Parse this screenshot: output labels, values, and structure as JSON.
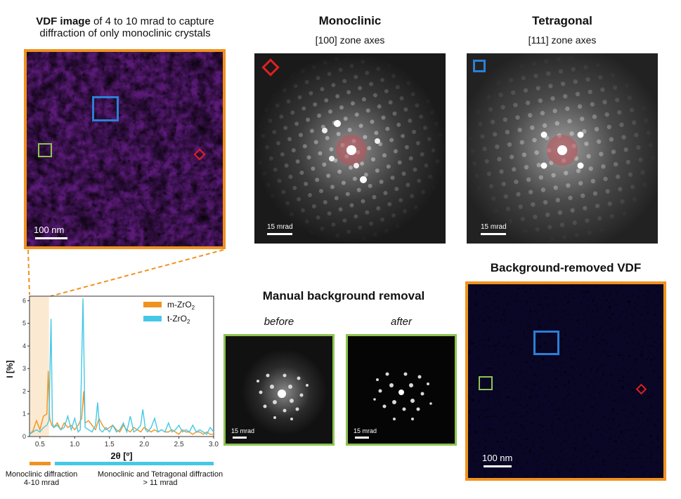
{
  "vdf": {
    "title_bold": "VDF image",
    "title_rest": " of 4 to 10 mrad to capture",
    "title_line2": "diffraction of only monoclinic crystals",
    "scale_label": "100 nm"
  },
  "monoclinic": {
    "title": "Monoclinic",
    "zone": "[100] zone axes",
    "scale_label": "15 mrad"
  },
  "tetragonal": {
    "title": "Tetragonal",
    "zone": "[111] zone axes",
    "scale_label": "15 mrad"
  },
  "manual": {
    "title": "Manual background removal",
    "before_label": "before",
    "after_label": "after",
    "before_scale": "15 mrad",
    "after_scale": "15 mrad"
  },
  "bg_removed": {
    "title": "Background-removed VDF",
    "scale_label": "100 nm"
  },
  "bottom_labels": {
    "left_line1": "Monoclinic diffraction",
    "left_line2": "4-10 mrad",
    "right_line1": "Monoclinic and Tetragonal diffraction",
    "right_line2": "> 11 mrad"
  },
  "colors": {
    "orange": "#f0921e",
    "cyan": "#45c8e6",
    "green": "#8dc451",
    "blue": "#2b7fd6",
    "red": "#e02020"
  },
  "chart_data": {
    "type": "line",
    "xlabel": "2θ [º]",
    "ylabel": "I [%]",
    "xlim": [
      0.35,
      3.0
    ],
    "ylim": [
      0,
      6.2
    ],
    "xticks": [
      "0.5",
      "1.0",
      "1.5",
      "2.0",
      "2.5",
      "3.0"
    ],
    "yticks": [
      "0",
      "1",
      "2",
      "3",
      "4",
      "5",
      "6"
    ],
    "shaded_region": [
      0.35,
      0.63
    ],
    "legend_placement": "top-right",
    "legend": {
      "m_pre": "m-ZrO",
      "t_pre": "t-ZrO",
      "sub": "2"
    },
    "series": [
      {
        "name": "m-ZrO2",
        "color": "#f0921e",
        "x": [
          0.35,
          0.4,
          0.45,
          0.5,
          0.55,
          0.6,
          0.62,
          0.64,
          0.67,
          0.7,
          0.75,
          0.8,
          0.85,
          0.9,
          0.95,
          1.0,
          1.05,
          1.1,
          1.13,
          1.15,
          1.2,
          1.25,
          1.3,
          1.35,
          1.4,
          1.45,
          1.5,
          1.55,
          1.6,
          1.65,
          1.7,
          1.75,
          1.8,
          1.85,
          1.9,
          1.95,
          2.0,
          2.05,
          2.1,
          2.15,
          2.2,
          2.25,
          2.3,
          2.35,
          2.4,
          2.45,
          2.5,
          2.55,
          2.6,
          2.65,
          2.7,
          2.75,
          2.8,
          2.85,
          2.9,
          2.95,
          3.0
        ],
        "y": [
          0.1,
          0.25,
          0.7,
          0.3,
          0.9,
          1.0,
          2.9,
          0.8,
          0.5,
          0.4,
          0.6,
          0.3,
          0.6,
          0.4,
          0.5,
          0.3,
          0.5,
          0.8,
          2.0,
          0.6,
          0.7,
          0.5,
          0.3,
          0.8,
          0.5,
          0.3,
          0.4,
          0.5,
          0.3,
          0.2,
          0.5,
          0.3,
          0.2,
          0.4,
          0.3,
          0.2,
          0.4,
          0.3,
          0.2,
          0.3,
          0.2,
          0.3,
          0.2,
          0.2,
          0.3,
          0.2,
          0.1,
          0.3,
          0.2,
          0.2,
          0.1,
          0.2,
          0.2,
          0.1,
          0.2,
          0.1,
          0.1
        ]
      },
      {
        "name": "t-ZrO2",
        "color": "#45c8e6",
        "x": [
          0.35,
          0.4,
          0.45,
          0.5,
          0.55,
          0.6,
          0.63,
          0.66,
          0.68,
          0.7,
          0.75,
          0.8,
          0.85,
          0.9,
          0.95,
          1.0,
          1.05,
          1.08,
          1.12,
          1.15,
          1.2,
          1.25,
          1.3,
          1.33,
          1.36,
          1.4,
          1.45,
          1.5,
          1.55,
          1.6,
          1.65,
          1.7,
          1.75,
          1.8,
          1.85,
          1.9,
          1.95,
          1.98,
          2.02,
          2.05,
          2.1,
          2.15,
          2.2,
          2.25,
          2.3,
          2.35,
          2.4,
          2.45,
          2.5,
          2.55,
          2.6,
          2.65,
          2.7,
          2.75,
          2.8,
          2.85,
          2.9,
          2.95,
          3.0
        ],
        "y": [
          0.1,
          0.2,
          0.3,
          0.2,
          0.4,
          0.5,
          0.7,
          5.2,
          0.6,
          0.4,
          0.5,
          0.3,
          0.4,
          0.9,
          0.3,
          0.8,
          0.2,
          0.3,
          6.1,
          0.4,
          0.3,
          0.2,
          0.5,
          1.5,
          0.3,
          0.2,
          0.4,
          0.2,
          0.5,
          0.2,
          0.3,
          0.6,
          0.2,
          0.9,
          0.2,
          0.3,
          0.5,
          1.2,
          0.3,
          0.2,
          0.4,
          0.8,
          0.2,
          0.3,
          0.2,
          0.6,
          0.2,
          0.3,
          0.5,
          0.2,
          0.3,
          0.2,
          0.5,
          0.2,
          0.3,
          0.2,
          0.1,
          0.4,
          0.2
        ]
      }
    ]
  }
}
